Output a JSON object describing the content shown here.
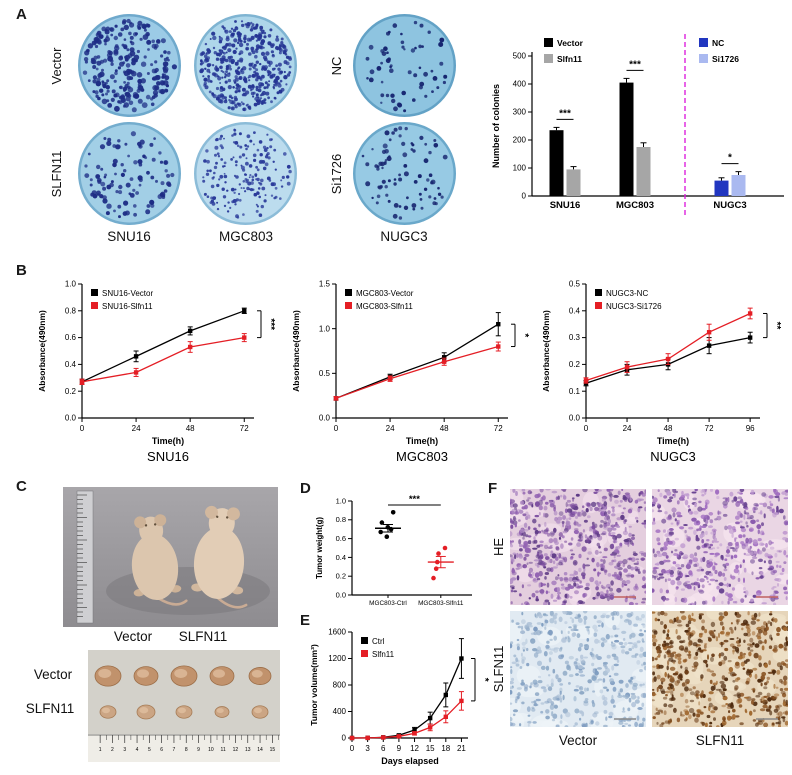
{
  "figure": {
    "panel_labels": {
      "A": "A",
      "B": "B",
      "C": "C",
      "D": "D",
      "E": "E",
      "F": "F"
    }
  },
  "panelA": {
    "row_labels_left": [
      "Vector",
      "SLFN11"
    ],
    "col_labels_left": [
      "SNU16",
      "MGC803"
    ],
    "row_labels_right": [
      "NC",
      "Si1726"
    ],
    "col_label_right": "NUGC3",
    "dishes": [
      {
        "id": "vector-snu16",
        "colonies": 240,
        "seed": 101,
        "bg": "#9ccbe6",
        "edge": "#6fa9cc",
        "dot": "#1e2d85",
        "dmin": 1.3,
        "dmax": 2.9
      },
      {
        "id": "vector-mgc803",
        "colonies": 420,
        "seed": 102,
        "bg": "#aed6ea",
        "edge": "#7fb4d2",
        "dot": "#253594",
        "dmin": 1.0,
        "dmax": 2.2
      },
      {
        "id": "slfn11-snu16",
        "colonies": 100,
        "seed": 103,
        "bg": "#a2cfe6",
        "edge": "#74adce",
        "dot": "#1e2d85",
        "dmin": 1.3,
        "dmax": 2.7
      },
      {
        "id": "slfn11-mgc803",
        "colonies": 180,
        "seed": 104,
        "bg": "#bcdcee",
        "edge": "#8cbcd8",
        "dot": "#2a3a9a",
        "dmin": 0.9,
        "dmax": 2.0
      },
      {
        "id": "nc-nugc3",
        "colonies": 58,
        "seed": 105,
        "bg": "#8ec4e0",
        "edge": "#63a2c6",
        "dot": "#14226e",
        "dmin": 1.2,
        "dmax": 2.5
      },
      {
        "id": "si1726-nugc3",
        "colonies": 80,
        "seed": 106,
        "bg": "#97cae4",
        "edge": "#6aa8ca",
        "dot": "#17256f",
        "dmin": 1.2,
        "dmax": 2.5
      }
    ]
  },
  "panelC": {
    "mice_labels": [
      "Vector",
      "SLFN11"
    ],
    "tumor_row_labels": [
      "Vector",
      "SLFN11"
    ],
    "tumor_sizes_row1": [
      13,
      12,
      13,
      12,
      11
    ],
    "tumor_sizes_row2": [
      8,
      9,
      8,
      7,
      8
    ],
    "ruler_numbers": [
      "1",
      "2",
      "3",
      "4",
      "5",
      "6",
      "7",
      "8",
      "9",
      "10",
      "11",
      "12",
      "13",
      "14",
      "15"
    ]
  },
  "panelF": {
    "row_labels": [
      "HE",
      "SLFN11"
    ],
    "col_labels": [
      "Vector",
      "SLFN11"
    ],
    "histology": [
      {
        "id": "he-vector",
        "bg": "#e4cede",
        "palette": [
          "#7d4fa0",
          "#9262b2",
          "#5e3a86",
          "#b08cc4"
        ],
        "n": 620,
        "seed": 201,
        "patch": "#f2e0ec",
        "scalebar": "#c06060"
      },
      {
        "id": "he-slfn11",
        "bg": "#ead6e4",
        "palette": [
          "#8a5aae",
          "#a06cc0",
          "#6a4492",
          "#c09cd0"
        ],
        "n": 520,
        "seed": 202,
        "patch": "#f6e6f0",
        "scalebar": "#c06060"
      },
      {
        "id": "ihc-vector",
        "bg": "#e1eaf2",
        "palette": [
          "#9ab2cc",
          "#7e9cc0",
          "#b4c6da",
          "#8aa6c4"
        ],
        "n": 430,
        "seed": 203,
        "patch": "#eef4f8",
        "scalebar": "#888888"
      },
      {
        "id": "ihc-slfn11",
        "bg": "#e6d5ba",
        "palette": [
          "#6a3c16",
          "#8a5424",
          "#4e2a0e",
          "#a06830"
        ],
        "n": 540,
        "seed": 204,
        "patch": "#f0e2ca",
        "scalebar": "#888888"
      }
    ]
  },
  "chart_data": [
    {
      "id": "colonies",
      "type": "bar",
      "ylabel": "Number of colonies",
      "ylim": [
        0,
        500
      ],
      "yticks": [
        0,
        100,
        200,
        300,
        400,
        500
      ],
      "group_centers": [
        77,
        147,
        242
      ],
      "divider_x": 197,
      "divider_color": "#dd22dd",
      "legend_left_x": 56,
      "legend_right_x": 211,
      "colors": {
        "Vector": "#000000",
        "Slfn11": "#a6a6a6",
        "NC": "#2136c0",
        "Si1726": "#aab9f0"
      },
      "legend_left": [
        {
          "name": "Vector",
          "color": "#000000"
        },
        {
          "name": "Slfn11",
          "color": "#a6a6a6"
        }
      ],
      "legend_right": [
        {
          "name": "NC",
          "color": "#2136c0"
        },
        {
          "name": "Si1726",
          "color": "#aab9f0"
        }
      ],
      "groups": [
        {
          "label": "SNU16",
          "sig": "***",
          "bars": [
            {
              "series": "Vector",
              "value": 235,
              "err": 10
            },
            {
              "series": "Slfn11",
              "value": 95,
              "err": 10
            }
          ]
        },
        {
          "label": "MGC803",
          "sig": "***",
          "bars": [
            {
              "series": "Vector",
              "value": 405,
              "err": 15
            },
            {
              "series": "Slfn11",
              "value": 175,
              "err": 15
            }
          ]
        },
        {
          "label": "NUGC3",
          "sig": "*",
          "bars": [
            {
              "series": "NC",
              "value": 55,
              "err": 10
            },
            {
              "series": "Si1726",
              "value": 75,
              "err": 12
            }
          ]
        }
      ]
    },
    {
      "id": "snu16-growth",
      "type": "line",
      "title": "SNU16",
      "xlabel": "Time(h)",
      "ylabel": "Absorbance(490nm)",
      "x": [
        0,
        24,
        48,
        72
      ],
      "ylim": [
        0,
        1.0
      ],
      "yticks": [
        "0.0",
        "0.2",
        "0.4",
        "0.6",
        "0.8",
        "1.0"
      ],
      "sig": "***",
      "series": [
        {
          "name": "SNU16-Vector",
          "color": "#000000",
          "values": [
            0.27,
            0.46,
            0.65,
            0.8
          ],
          "errors": [
            0.02,
            0.04,
            0.03,
            0.02
          ]
        },
        {
          "name": "SNU16-Slfn11",
          "color": "#e41e25",
          "values": [
            0.27,
            0.34,
            0.53,
            0.6
          ],
          "errors": [
            0.02,
            0.03,
            0.04,
            0.03
          ]
        }
      ]
    },
    {
      "id": "mgc803-growth",
      "type": "line",
      "title": "MGC803",
      "xlabel": "Time(h)",
      "ylabel": "Absorbance(490nm)",
      "x": [
        0,
        24,
        48,
        72
      ],
      "ylim": [
        0,
        1.5
      ],
      "yticks": [
        "0.0",
        "0.5",
        "1.0",
        "1.5"
      ],
      "sig": "*",
      "series": [
        {
          "name": "MGC803-Vector",
          "color": "#000000",
          "values": [
            0.22,
            0.46,
            0.68,
            1.05
          ],
          "errors": [
            0.02,
            0.03,
            0.05,
            0.13
          ]
        },
        {
          "name": "MGC803-Slfn11",
          "color": "#e41e25",
          "values": [
            0.22,
            0.44,
            0.63,
            0.8
          ],
          "errors": [
            0.02,
            0.03,
            0.04,
            0.05
          ]
        }
      ]
    },
    {
      "id": "nugc3-growth",
      "type": "line",
      "title": "NUGC3",
      "xlabel": "Time(h)",
      "ylabel": "Absorbance(490nm)",
      "x": [
        0,
        24,
        48,
        72,
        96
      ],
      "ylim": [
        0,
        0.5
      ],
      "yticks": [
        "0.0",
        "0.1",
        "0.2",
        "0.3",
        "0.4",
        "0.5"
      ],
      "sig": "**",
      "series": [
        {
          "name": "NUGC3-NC",
          "color": "#000000",
          "values": [
            0.13,
            0.18,
            0.2,
            0.27,
            0.3
          ],
          "errors": [
            0.01,
            0.02,
            0.02,
            0.03,
            0.02
          ]
        },
        {
          "name": "NUGC3-Si1726",
          "color": "#e41e25",
          "values": [
            0.14,
            0.19,
            0.22,
            0.32,
            0.39
          ],
          "errors": [
            0.01,
            0.02,
            0.02,
            0.03,
            0.02
          ]
        }
      ]
    },
    {
      "id": "tumor-weight",
      "type": "scatter",
      "ylabel": "Tumor weight(g)",
      "ylim": [
        0,
        1.0
      ],
      "yticks": [
        "0.0",
        "0.2",
        "0.4",
        "0.6",
        "0.8",
        "1.0"
      ],
      "sig": "***",
      "groups": [
        {
          "label": "MGC803-Ctrl",
          "color": "#000000",
          "values": [
            0.62,
            0.67,
            0.7,
            0.72,
            0.77,
            0.88
          ],
          "mean": 0.71,
          "sem": 0.04
        },
        {
          "label": "MGC803-Slfn11",
          "color": "#e41e25",
          "values": [
            0.18,
            0.28,
            0.35,
            0.44,
            0.5
          ],
          "mean": 0.35,
          "sem": 0.06
        }
      ]
    },
    {
      "id": "tumor-volume",
      "type": "line",
      "xlabel": "Days elapsed",
      "ylabel": "Tumor volume(mm³)",
      "left_pad": 46,
      "right_pad": 22,
      "x": [
        0,
        3,
        6,
        9,
        12,
        15,
        18,
        21
      ],
      "ylim": [
        0,
        1600
      ],
      "yticks": [
        "0",
        "400",
        "800",
        "1200",
        "1600"
      ],
      "sig": "*",
      "series": [
        {
          "name": "Ctrl",
          "color": "#000000",
          "values": [
            0,
            2,
            10,
            40,
            120,
            300,
            650,
            1200
          ],
          "errors": [
            0,
            2,
            5,
            15,
            40,
            90,
            180,
            300
          ]
        },
        {
          "name": "Slfn11",
          "color": "#e41e25",
          "values": [
            0,
            2,
            8,
            25,
            70,
            160,
            320,
            560
          ],
          "errors": [
            0,
            2,
            5,
            10,
            25,
            50,
            90,
            140
          ]
        }
      ]
    }
  ]
}
